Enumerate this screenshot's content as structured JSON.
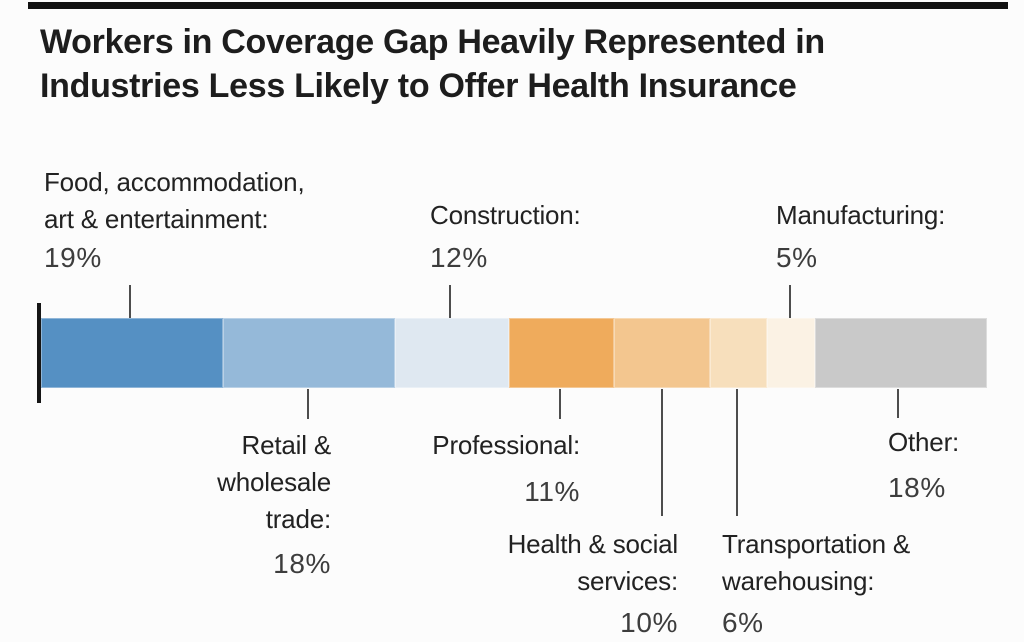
{
  "title": {
    "line1": "Workers in Coverage Gap Heavily Represented in",
    "line2": "Industries Less Likely to Offer Health Insurance"
  },
  "labels": {
    "food": {
      "line1": "Food, accommodation,",
      "line2": "art & entertainment:",
      "pct": "19%"
    },
    "construction": {
      "name": "Construction:",
      "pct": "12%"
    },
    "manufacturing": {
      "name": "Manufacturing:",
      "pct": "5%"
    },
    "retail": {
      "line1": "Retail &",
      "line2": "wholesale",
      "line3": "trade:",
      "pct": "18%"
    },
    "professional": {
      "name": "Professional:",
      "pct": "11%"
    },
    "health": {
      "line1": "Health & social",
      "line2": "services:",
      "pct": "10%"
    },
    "transportation": {
      "line1": "Transportation &",
      "line2": "warehousing:",
      "pct": "6%"
    },
    "other": {
      "name": "Other:",
      "pct": "18%"
    }
  },
  "chart_data": {
    "type": "bar",
    "subtype": "single-horizontal-stacked-bar",
    "title": "Workers in Coverage Gap Heavily Represented in Industries Less Likely to Offer Health Insurance",
    "unit": "percent of workers",
    "total_shown": 99,
    "legend": "none",
    "axes": "none",
    "gridlines": false,
    "accent_rule_color": "#111111",
    "segments": [
      {
        "label": "Food, accommodation, art & entertainment",
        "value": 19,
        "color": "#5590c3",
        "label_position": "above"
      },
      {
        "label": "Retail & wholesale trade",
        "value": 18,
        "color": "#95b9d9",
        "label_position": "below"
      },
      {
        "label": "Construction",
        "value": 12,
        "color": "#dfe8f1",
        "label_position": "above"
      },
      {
        "label": "Professional",
        "value": 11,
        "color": "#efab5c",
        "label_position": "below"
      },
      {
        "label": "Health & social services",
        "value": 10,
        "color": "#f3c68f",
        "label_position": "below"
      },
      {
        "label": "Transportation & warehousing",
        "value": 6,
        "color": "#f7dfbc",
        "label_position": "below"
      },
      {
        "label": "Manufacturing",
        "value": 5,
        "color": "#fbf2e4",
        "label_position": "above"
      },
      {
        "label": "Other",
        "value": 18,
        "color": "#c9c9c9",
        "label_position": "below"
      }
    ]
  }
}
